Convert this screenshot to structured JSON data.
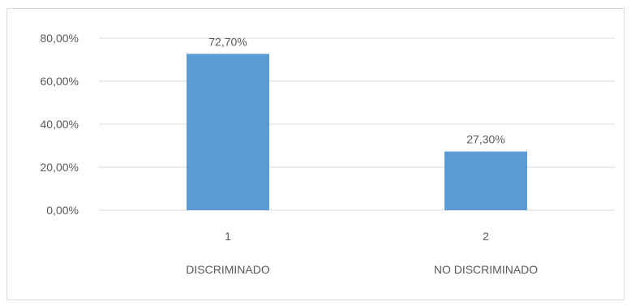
{
  "chart_data": {
    "type": "bar",
    "categories": [
      "1",
      "2"
    ],
    "category_sublabels": [
      "DISCRIMINADO",
      "NO DISCRIMINADO"
    ],
    "values": [
      72.7,
      27.3
    ],
    "data_labels": [
      "72,70%",
      "27,30%"
    ],
    "y_ticks": [
      "0,00%",
      "20,00%",
      "40,00%",
      "60,00%",
      "80,00%"
    ],
    "y_tick_values": [
      0,
      20,
      40,
      60,
      80
    ],
    "ylim": [
      0,
      80
    ],
    "grid": true,
    "legend": "none",
    "title": "",
    "xlabel": "",
    "ylabel": "",
    "colors": {
      "bar": "#5b9bd5",
      "grid": "#d9d9d9",
      "text": "#595959"
    }
  }
}
